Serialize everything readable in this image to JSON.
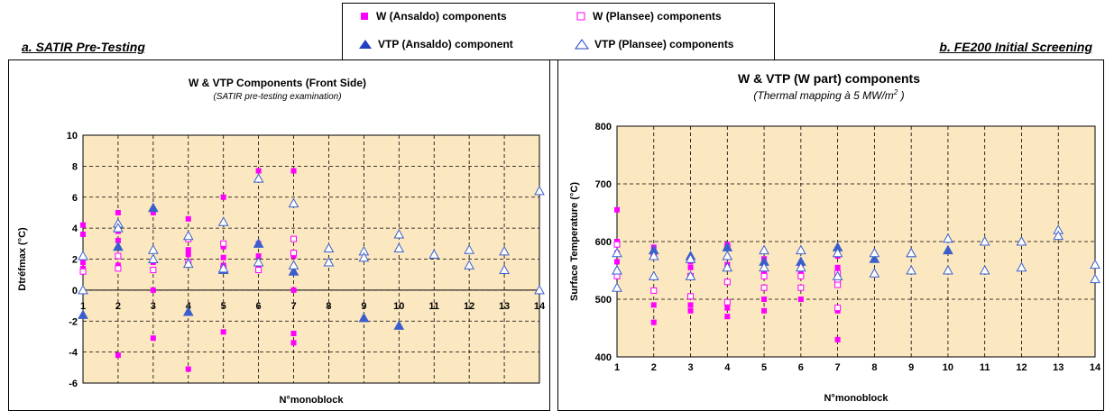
{
  "legend": {
    "items": [
      {
        "label": "W (Ansaldo) components",
        "marker": "square",
        "filled": true
      },
      {
        "label": "W (Plansee) components",
        "marker": "square",
        "filled": false
      },
      {
        "label": "VTP (Ansaldo) component",
        "marker": "triangle",
        "filled": true
      },
      {
        "label": "VTP (Plansee) components",
        "marker": "triangle",
        "filled": false
      }
    ]
  },
  "sections": {
    "left": "a. SATIR Pre-Testing",
    "right": "b. FE200 Initial Screening"
  },
  "colors": {
    "w_marker": "#ff00ff",
    "vtp_marker": "#3366cc",
    "plot_background": "#fce8c0",
    "grid": "#000000"
  },
  "chart_data": [
    {
      "type": "scatter",
      "title": "W & VTP Components (Front Side)",
      "subtitle": "(SATIR pre-testing examination)",
      "xlabel": "N°monoblock",
      "ylabel": "Dtréfmax (°C)",
      "xlim": [
        1,
        14
      ],
      "ylim": [
        -6,
        10
      ],
      "x_ticks": [
        1,
        2,
        3,
        4,
        5,
        6,
        7,
        8,
        9,
        10,
        11,
        12,
        13,
        14
      ],
      "y_ticks": [
        -6,
        -4,
        -2,
        0,
        2,
        4,
        6,
        8,
        10
      ],
      "grid": "dashed",
      "series": [
        {
          "name": "W (Ansaldo) components",
          "marker": "square",
          "filled": true,
          "color": "#ff00ff",
          "points": [
            [
              1,
              4.2
            ],
            [
              1,
              3.6
            ],
            [
              1,
              1.8
            ],
            [
              1,
              1.4
            ],
            [
              2,
              5.0
            ],
            [
              2,
              3.8
            ],
            [
              2,
              3.2
            ],
            [
              2,
              1.6
            ],
            [
              2,
              -4.2
            ],
            [
              3,
              5.0
            ],
            [
              3,
              1.8
            ],
            [
              3,
              0.0
            ],
            [
              3,
              -3.1
            ],
            [
              4,
              4.6
            ],
            [
              4,
              2.6
            ],
            [
              4,
              2.3
            ],
            [
              4,
              1.8
            ],
            [
              4,
              -5.1
            ],
            [
              5,
              6.0
            ],
            [
              5,
              2.8
            ],
            [
              5,
              2.1
            ],
            [
              5,
              1.6
            ],
            [
              5,
              -2.7
            ],
            [
              6,
              7.7
            ],
            [
              6,
              3.0
            ],
            [
              6,
              2.2
            ],
            [
              6,
              1.6
            ],
            [
              7,
              7.7
            ],
            [
              7,
              2.2
            ],
            [
              7,
              0.0
            ],
            [
              7,
              -2.8
            ],
            [
              7,
              -3.4
            ]
          ]
        },
        {
          "name": "W (Plansee) components",
          "marker": "square",
          "filled": false,
          "color": "#ff00ff",
          "points": [
            [
              1,
              1.2
            ],
            [
              2,
              2.2
            ],
            [
              2,
              1.4
            ],
            [
              3,
              1.3
            ],
            [
              4,
              3.3
            ],
            [
              4,
              1.8
            ],
            [
              5,
              3.0
            ],
            [
              5,
              1.4
            ],
            [
              6,
              1.3
            ],
            [
              7,
              3.3
            ],
            [
              7,
              2.4
            ]
          ]
        },
        {
          "name": "VTP (Ansaldo) component",
          "marker": "triangle",
          "filled": true,
          "color": "#3366cc",
          "points": [
            [
              1,
              -1.6
            ],
            [
              2,
              2.8
            ],
            [
              3,
              5.3
            ],
            [
              4,
              -1.4
            ],
            [
              5,
              1.3
            ],
            [
              6,
              3.0
            ],
            [
              7,
              1.2
            ],
            [
              8,
              1.8
            ],
            [
              9,
              -1.8
            ],
            [
              10,
              -2.3
            ]
          ]
        },
        {
          "name": "VTP (Plansee) components",
          "marker": "triangle",
          "filled": false,
          "color": "#3366cc",
          "points": [
            [
              1,
              2.2
            ],
            [
              1,
              0.0
            ],
            [
              2,
              4.3
            ],
            [
              2,
              4.0
            ],
            [
              3,
              2.6
            ],
            [
              3,
              2.0
            ],
            [
              4,
              3.5
            ],
            [
              4,
              1.7
            ],
            [
              5,
              4.4
            ],
            [
              5,
              1.4
            ],
            [
              6,
              7.2
            ],
            [
              6,
              1.8
            ],
            [
              7,
              5.6
            ],
            [
              7,
              1.6
            ],
            [
              8,
              2.7
            ],
            [
              8,
              1.8
            ],
            [
              9,
              2.5
            ],
            [
              9,
              2.1
            ],
            [
              10,
              3.6
            ],
            [
              10,
              2.7
            ],
            [
              11,
              2.3
            ],
            [
              12,
              2.6
            ],
            [
              12,
              1.6
            ],
            [
              13,
              2.5
            ],
            [
              13,
              1.3
            ],
            [
              14,
              6.4
            ],
            [
              14,
              0.0
            ]
          ]
        }
      ]
    },
    {
      "type": "scatter",
      "title": "W  & VTP (W part) components",
      "subtitle": "(Thermal mapping à 5 MW/m",
      "subtitle_sup": "2",
      "subtitle_end": " )",
      "xlabel": "N°monoblock",
      "ylabel": "Surface Temperature (°C)",
      "xlim": [
        1,
        14
      ],
      "ylim": [
        400,
        800
      ],
      "x_ticks": [
        1,
        2,
        3,
        4,
        5,
        6,
        7,
        8,
        9,
        10,
        11,
        12,
        13,
        14
      ],
      "y_ticks": [
        400,
        500,
        600,
        700,
        800
      ],
      "grid": "dashed",
      "series": [
        {
          "name": "W (Ansaldo) components",
          "marker": "square",
          "filled": true,
          "color": "#ff00ff",
          "points": [
            [
              1,
              655
            ],
            [
              1,
              600
            ],
            [
              1,
              580
            ],
            [
              1,
              565
            ],
            [
              2,
              590
            ],
            [
              2,
              580
            ],
            [
              2,
              490
            ],
            [
              2,
              460
            ],
            [
              3,
              565
            ],
            [
              3,
              555
            ],
            [
              3,
              490
            ],
            [
              3,
              480
            ],
            [
              4,
              595
            ],
            [
              4,
              560
            ],
            [
              4,
              485
            ],
            [
              4,
              470
            ],
            [
              5,
              570
            ],
            [
              5,
              550
            ],
            [
              5,
              500
            ],
            [
              5,
              480
            ],
            [
              6,
              560
            ],
            [
              6,
              545
            ],
            [
              6,
              500
            ],
            [
              7,
              575
            ],
            [
              7,
              555
            ],
            [
              7,
              480
            ],
            [
              7,
              430
            ]
          ]
        },
        {
          "name": "W (Plansee) components",
          "marker": "square",
          "filled": false,
          "color": "#ff00ff",
          "points": [
            [
              1,
              595
            ],
            [
              1,
              540
            ],
            [
              2,
              575
            ],
            [
              2,
              515
            ],
            [
              3,
              540
            ],
            [
              3,
              505
            ],
            [
              4,
              590
            ],
            [
              4,
              530
            ],
            [
              4,
              495
            ],
            [
              5,
              540
            ],
            [
              5,
              520
            ],
            [
              6,
              540
            ],
            [
              6,
              520
            ],
            [
              7,
              545
            ],
            [
              7,
              530
            ],
            [
              7,
              525
            ],
            [
              7,
              485
            ]
          ]
        },
        {
          "name": "VTP (Ansaldo) component",
          "marker": "triangle",
          "filled": true,
          "color": "#3366cc",
          "points": [
            [
              1,
              550
            ],
            [
              2,
              585
            ],
            [
              3,
              575
            ],
            [
              4,
              590
            ],
            [
              5,
              565
            ],
            [
              6,
              565
            ],
            [
              7,
              590
            ],
            [
              8,
              570
            ],
            [
              9,
              580
            ],
            [
              10,
              585
            ]
          ]
        },
        {
          "name": "VTP (Plansee) components",
          "marker": "triangle",
          "filled": false,
          "color": "#3366cc",
          "points": [
            [
              1,
              580
            ],
            [
              1,
              550
            ],
            [
              1,
              520
            ],
            [
              2,
              575
            ],
            [
              2,
              540
            ],
            [
              3,
              570
            ],
            [
              3,
              540
            ],
            [
              4,
              575
            ],
            [
              4,
              555
            ],
            [
              5,
              585
            ],
            [
              5,
              555
            ],
            [
              6,
              585
            ],
            [
              6,
              555
            ],
            [
              7,
              580
            ],
            [
              7,
              540
            ],
            [
              8,
              580
            ],
            [
              8,
              545
            ],
            [
              9,
              580
            ],
            [
              9,
              550
            ],
            [
              10,
              605
            ],
            [
              10,
              550
            ],
            [
              11,
              600
            ],
            [
              11,
              550
            ],
            [
              12,
              600
            ],
            [
              12,
              555
            ],
            [
              13,
              620
            ],
            [
              13,
              610
            ],
            [
              14,
              560
            ],
            [
              14,
              535
            ]
          ]
        }
      ]
    }
  ]
}
